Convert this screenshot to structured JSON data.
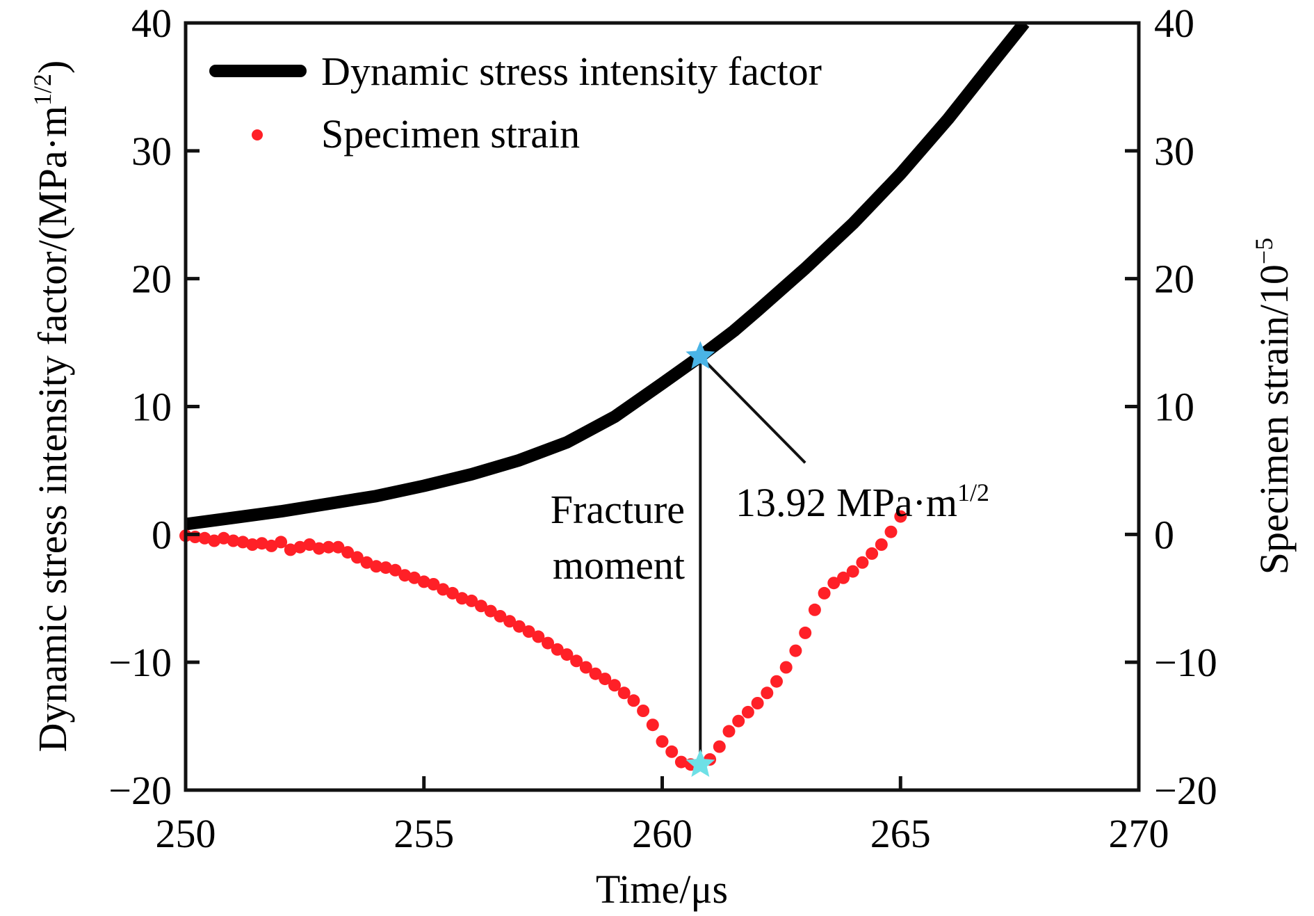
{
  "chart_data": {
    "type": "line",
    "title": "",
    "xlabel": "Time/μs",
    "ylabel_left": "Dynamic stress intensity factor/(MPa·m^1/2)",
    "ylabel_left_main": "Dynamic stress intensity factor/(MPa·m",
    "ylabel_left_sup": "1/2",
    "ylabel_left_close": ")",
    "ylabel_right": "Specimen strain/10^-5",
    "ylabel_right_main": "Specimen strain/10",
    "ylabel_right_sup": "−5",
    "xlim": [
      250,
      270
    ],
    "ylim_left": [
      -20,
      40
    ],
    "ylim_right": [
      -20,
      40
    ],
    "x_ticks": [
      250,
      255,
      260,
      265,
      270
    ],
    "x_tick_labels": [
      "250",
      "255",
      "260",
      "265",
      "270"
    ],
    "y_ticks": [
      -20,
      -10,
      0,
      10,
      20,
      30,
      40
    ],
    "y_tick_labels": [
      "−20",
      "−10",
      "0",
      "10",
      "20",
      "30",
      "40"
    ],
    "grid": false,
    "legend_position": "top-left",
    "series": [
      {
        "name": "Dynamic stress intensity factor",
        "style": "line",
        "color": "#000000",
        "axis": "left",
        "x": [
          250.0,
          251.0,
          252.0,
          253.0,
          254.0,
          255.0,
          256.0,
          257.0,
          258.0,
          259.0,
          260.0,
          260.8,
          261.5,
          262.0,
          263.0,
          264.0,
          265.0,
          266.0,
          267.0,
          267.6
        ],
        "y": [
          0.8,
          1.3,
          1.8,
          2.4,
          3.0,
          3.8,
          4.7,
          5.8,
          7.2,
          9.2,
          11.8,
          13.92,
          15.9,
          17.5,
          20.8,
          24.3,
          28.2,
          32.5,
          37.2,
          40.0
        ]
      },
      {
        "name": "Specimen strain",
        "style": "scatter",
        "color": "#ff2027",
        "axis": "right",
        "x": [
          250.0,
          250.2,
          250.4,
          250.6,
          250.8,
          251.0,
          251.2,
          251.4,
          251.6,
          251.8,
          252.0,
          252.2,
          252.4,
          252.6,
          252.8,
          253.0,
          253.2,
          253.4,
          253.6,
          253.8,
          254.0,
          254.2,
          254.4,
          254.6,
          254.8,
          255.0,
          255.2,
          255.4,
          255.6,
          255.8,
          256.0,
          256.2,
          256.4,
          256.6,
          256.8,
          257.0,
          257.2,
          257.4,
          257.6,
          257.8,
          258.0,
          258.2,
          258.4,
          258.6,
          258.8,
          259.0,
          259.2,
          259.4,
          259.6,
          259.8,
          260.0,
          260.2,
          260.4,
          260.6,
          260.8,
          261.0,
          261.2,
          261.4,
          261.6,
          261.8,
          262.0,
          262.2,
          262.4,
          262.6,
          262.8,
          263.0,
          263.2,
          263.4,
          263.6,
          263.8,
          264.0,
          264.2,
          264.4,
          264.6,
          264.8,
          265.0
        ],
        "y": [
          -0.1,
          -0.2,
          -0.3,
          -0.5,
          -0.3,
          -0.5,
          -0.6,
          -0.8,
          -0.7,
          -0.9,
          -0.6,
          -1.2,
          -1.0,
          -0.8,
          -1.1,
          -1.0,
          -1.0,
          -1.4,
          -1.8,
          -2.2,
          -2.5,
          -2.6,
          -2.8,
          -3.2,
          -3.4,
          -3.7,
          -3.9,
          -4.3,
          -4.6,
          -5.0,
          -5.2,
          -5.6,
          -6.0,
          -6.4,
          -6.8,
          -7.2,
          -7.6,
          -8.0,
          -8.5,
          -9.0,
          -9.4,
          -9.9,
          -10.4,
          -10.9,
          -11.3,
          -11.8,
          -12.4,
          -13.0,
          -13.8,
          -14.9,
          -16.2,
          -17.0,
          -17.8,
          -18.0,
          -18.0,
          -17.6,
          -16.6,
          -15.4,
          -14.6,
          -13.9,
          -13.2,
          -12.4,
          -11.5,
          -10.4,
          -9.1,
          -7.7,
          -5.9,
          -4.6,
          -3.8,
          -3.4,
          -2.9,
          -2.2,
          -1.5,
          -0.8,
          0.2,
          1.4
        ]
      }
    ],
    "annotations": [
      {
        "type": "vertical-line",
        "label_line1": "Fracture",
        "label_line2": "moment",
        "x": 260.8,
        "y_from": -18.0,
        "y_to": 13.92
      },
      {
        "type": "leader-line",
        "label": "13.92 MPa·m",
        "label_sup": "1/2",
        "from": [
          260.8,
          13.92
        ],
        "to": [
          263.0,
          5.6
        ],
        "text_at": [
          261.2,
          1.6
        ]
      },
      {
        "type": "marker",
        "shape": "star",
        "name": "fracture-ksi-star",
        "x": 260.8,
        "y": 13.92,
        "color": "#4ab4e6"
      },
      {
        "type": "marker",
        "shape": "star",
        "name": "fracture-strain-star",
        "x": 260.8,
        "y": -18.0,
        "color": "#6ee0e6"
      }
    ]
  }
}
